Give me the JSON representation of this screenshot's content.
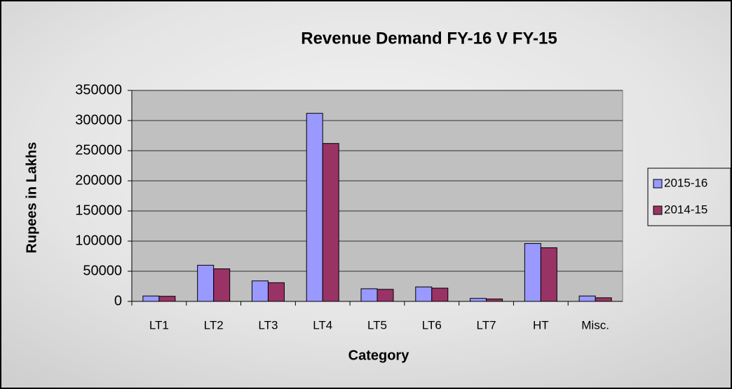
{
  "chart_data": {
    "type": "bar",
    "title": "Revenue Demand FY-16 V FY-15",
    "x_label": "Category",
    "y_label": "Rupees in Lakhs",
    "categories": [
      "LT1",
      "LT2",
      "LT3",
      "LT4",
      "LT5",
      "LT6",
      "LT7",
      "HT",
      "Misc."
    ],
    "series": [
      {
        "name": "2015-16",
        "color": "#9999ff",
        "values": [
          9000,
          60000,
          34000,
          312000,
          21000,
          24000,
          5000,
          96000,
          9000
        ]
      },
      {
        "name": "2014-15",
        "color": "#993366",
        "values": [
          8500,
          54000,
          31000,
          262000,
          20000,
          22000,
          4000,
          89000,
          6000
        ]
      }
    ],
    "ylim": [
      0,
      350000
    ],
    "yticks": [
      0,
      50000,
      100000,
      150000,
      200000,
      250000,
      300000,
      350000
    ],
    "grid": true,
    "legend": "right"
  }
}
